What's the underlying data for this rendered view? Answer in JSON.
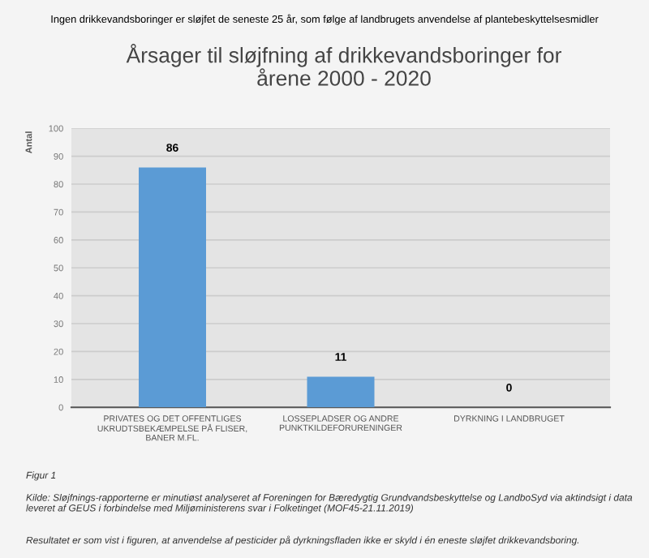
{
  "chart_data": {
    "type": "bar",
    "subtitle": "Ingen drikkevandsboringer er sløjfet de seneste 25 år, som følge af landbrugets anvendelse af plantebeskyttelsesmidler",
    "title": "Årsager til sløjfning af drikkevandsboringer for\nårene 2000 - 2020",
    "ylabel": "Antal",
    "categories": [
      "PRIVATES OG DET OFFENTLIGES\nUKRUDTSBEKÆMPELSE PÅ FLISER,\nBANER M.FL.",
      "LOSSEPLADSER OG ANDRE\nPUNKTKILDEFORURENINGER",
      "DYRKNING I LANDBRUGET"
    ],
    "values": [
      86,
      11,
      0
    ],
    "color": "#5b9bd5",
    "ylim": [
      0,
      100
    ],
    "yticks": [
      0,
      10,
      20,
      30,
      40,
      50,
      60,
      70,
      80,
      90,
      100
    ],
    "grid": "y",
    "data_labels": true,
    "annotations": [
      "Figur 1",
      "Kilde: Sløjfnings-rapporterne er minutiøst analyseret af Foreningen for Bæredygtig Grundvandsbeskyttelse og LandboSyd via aktindsigt i data leveret af GEUS i forbindelse med Miljøministerens svar i Folketinget (MOF45-21.11.2019)",
      "Resultatet er som vist i figuren, at anvendelse af pesticider på dyrkningsfladen ikke er skyld i én eneste sløjfet drikkevandsboring."
    ]
  }
}
